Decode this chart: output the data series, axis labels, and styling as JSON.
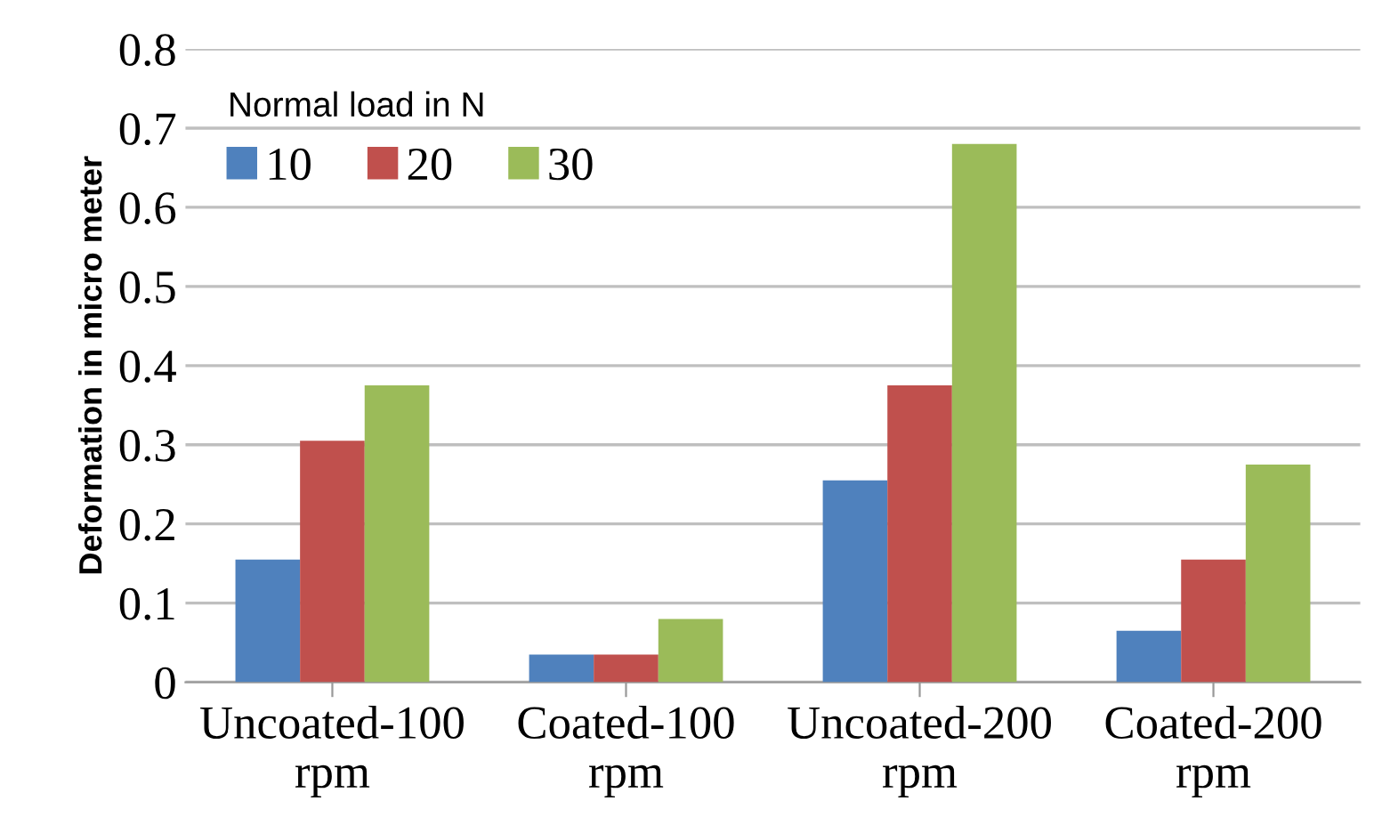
{
  "chart_data": {
    "type": "bar",
    "ylabel": "Deformation in micro meter",
    "legend_title": "Normal load in N",
    "categories": [
      "Uncoated-100\nrpm",
      "Coated-100\nrpm",
      "Uncoated-200\nrpm",
      "Coated-200\nrpm"
    ],
    "series": [
      {
        "name": "10",
        "color": "#4f81bd",
        "values": [
          0.155,
          0.035,
          0.255,
          0.065
        ]
      },
      {
        "name": "20",
        "color": "#c0504d",
        "values": [
          0.305,
          0.035,
          0.375,
          0.155
        ]
      },
      {
        "name": "30",
        "color": "#9bbb59",
        "values": [
          0.375,
          0.08,
          0.68,
          0.275
        ]
      }
    ],
    "ylim": [
      0,
      0.8
    ],
    "yticks": [
      {
        "value": 0,
        "label": "0"
      },
      0.1,
      0.2,
      0.3,
      0.4,
      0.5,
      0.6,
      0.7,
      0.8
    ],
    "grid": "y",
    "legend": "top left"
  }
}
